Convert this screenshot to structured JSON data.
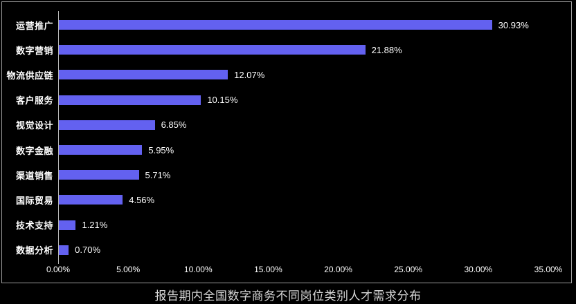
{
  "title": "报告期内全国数字商务不同岗位类别人才需求分布",
  "chart_data": {
    "type": "bar",
    "orientation": "horizontal",
    "title": "报告期内全国数字商务不同岗位类别人才需求分布",
    "categories": [
      "运营推广",
      "数字营销",
      "物流供应链",
      "客户服务",
      "视觉设计",
      "数字金融",
      "渠道销售",
      "国际贸易",
      "技术支持",
      "数据分析"
    ],
    "values": [
      30.93,
      21.88,
      12.07,
      10.15,
      6.85,
      5.95,
      5.71,
      4.56,
      1.21,
      0.7
    ],
    "value_labels": [
      "30.93%",
      "21.88%",
      "12.07%",
      "10.15%",
      "6.85%",
      "5.95%",
      "5.71%",
      "4.56%",
      "1.21%",
      "0.70%"
    ],
    "xlabel": "",
    "ylabel": "",
    "xlim": [
      0,
      35
    ],
    "x_ticks": [
      "0.00%",
      "5.00%",
      "10.00%",
      "15.00%",
      "20.00%",
      "25.00%",
      "30.00%",
      "35.00%"
    ],
    "grid": false,
    "legend": false,
    "bar_color": "#6361f0",
    "background_color": "#000000",
    "frame_border_color": "#9e9e9e",
    "axis_line_color": "#b5b5b5",
    "label_color": "#ffffff",
    "title_color": "#d6d6d6"
  }
}
